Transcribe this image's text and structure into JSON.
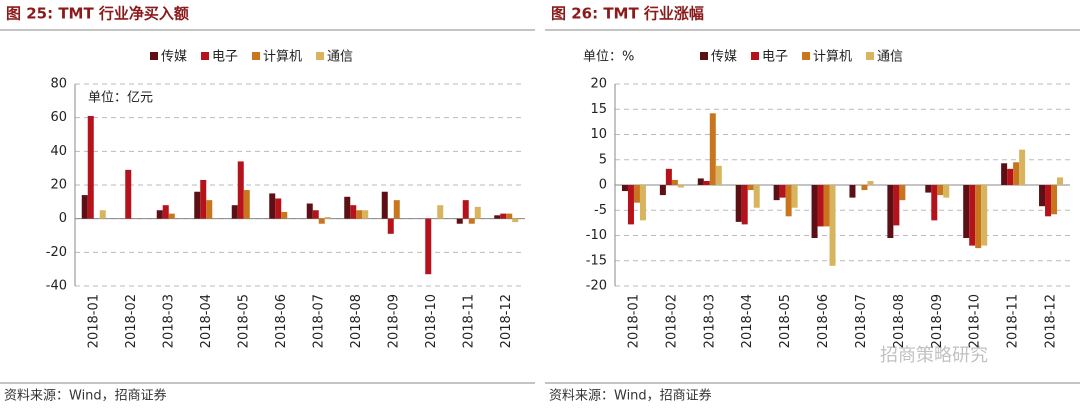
{
  "chart_data": [
    {
      "type": "bar",
      "title": "图 25:  TMT 行业净买入额",
      "annotation": "单位：亿元",
      "source": "资料来源：Wind，招商证券",
      "categories": [
        "2018-01",
        "2018-02",
        "2018-03",
        "2018-04",
        "2018-05",
        "2018-06",
        "2018-07",
        "2018-08",
        "2018-09",
        "2018-10",
        "2018-11",
        "2018-12"
      ],
      "series": [
        {
          "name": "传媒",
          "color": "#5c0f14",
          "values": [
            14,
            0,
            5,
            16,
            8,
            15,
            9,
            13,
            16,
            0,
            -3,
            2
          ]
        },
        {
          "name": "电子",
          "color": "#b5121b",
          "values": [
            61,
            29,
            8,
            23,
            34,
            12,
            5,
            8,
            -9,
            -33,
            11,
            3
          ]
        },
        {
          "name": "计算机",
          "color": "#c8751e",
          "values": [
            0,
            0,
            3,
            11,
            17,
            4,
            -3,
            5,
            11,
            0,
            -3,
            3
          ]
        },
        {
          "name": "通信",
          "color": "#d9b45e",
          "values": [
            5,
            0,
            0,
            0,
            0,
            0,
            1,
            5,
            0,
            8,
            7,
            -2
          ]
        }
      ],
      "ylim": [
        -40,
        80
      ],
      "yticks": [
        -40,
        -20,
        0,
        20,
        40,
        60,
        80
      ],
      "grid": true
    },
    {
      "type": "bar",
      "title": "图 26:  TMT 行业涨幅",
      "annotation": "单位：%",
      "source": "资料来源：Wind，招商证券",
      "watermark": "招商策略研究",
      "categories": [
        "2018-01",
        "2018-02",
        "2018-03",
        "2018-04",
        "2018-05",
        "2018-06",
        "2018-07",
        "2018-08",
        "2018-09",
        "2018-10",
        "2018-11",
        "2018-12"
      ],
      "series": [
        {
          "name": "传媒",
          "color": "#5c0f14",
          "values": [
            -1.2,
            -2,
            1.3,
            -7.3,
            -3,
            -10.5,
            -2.5,
            -10.5,
            -1.5,
            -10.5,
            4.3,
            -4.2
          ]
        },
        {
          "name": "电子",
          "color": "#b5121b",
          "values": [
            -7.8,
            3.2,
            0.8,
            -7.8,
            -2.5,
            -8.2,
            0,
            -8,
            -7,
            -12,
            3.2,
            -6.2
          ]
        },
        {
          "name": "计算机",
          "color": "#c8751e",
          "values": [
            -3.5,
            1,
            14.2,
            -1,
            -6.2,
            -8.2,
            -1,
            -3,
            -2,
            -12.5,
            4.5,
            -5.8
          ]
        },
        {
          "name": "通信",
          "color": "#d9b45e",
          "values": [
            -7,
            -0.5,
            3.8,
            -4.5,
            -4.5,
            -16,
            0.8,
            0,
            -2.5,
            -12,
            7,
            1.5
          ]
        }
      ],
      "ylim": [
        -20,
        20
      ],
      "yticks": [
        -20,
        -15,
        -10,
        -5,
        0,
        5,
        10,
        15,
        20
      ],
      "grid": true
    }
  ]
}
